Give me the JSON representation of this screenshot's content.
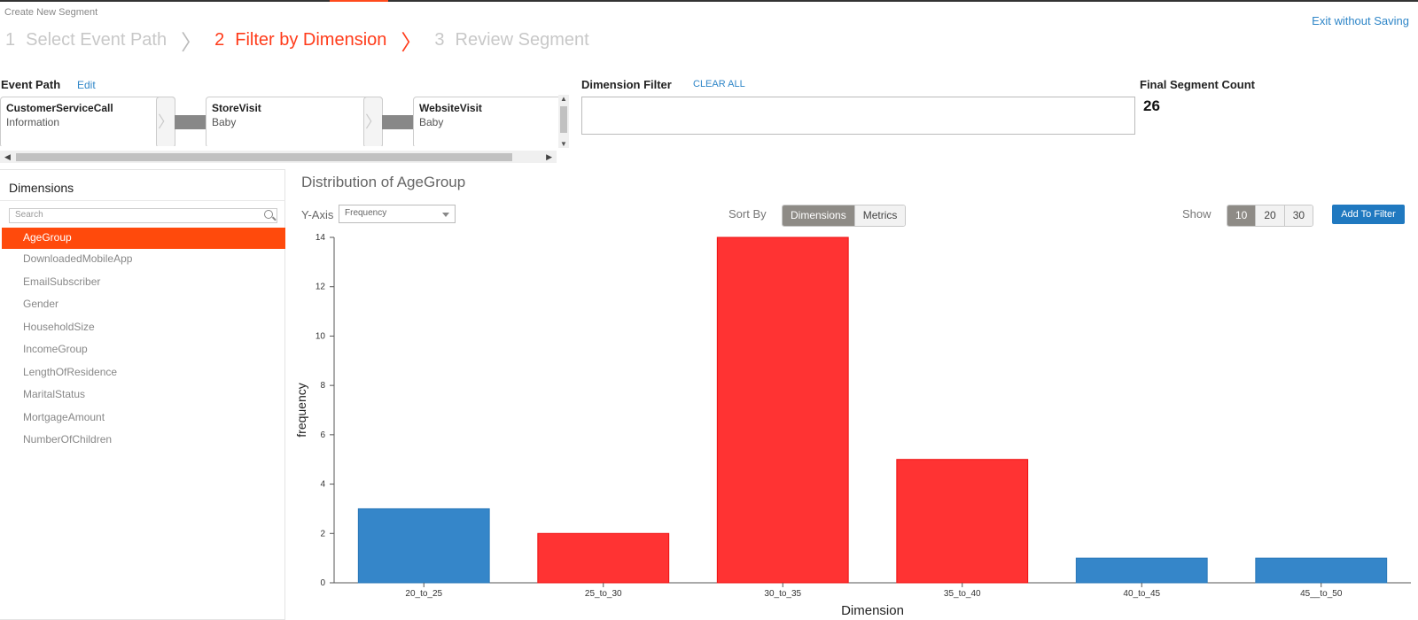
{
  "header": {
    "page_label": "Create New Segment",
    "steps": [
      {
        "num": "1",
        "label": "Select Event Path"
      },
      {
        "num": "2",
        "label": "Filter by Dimension"
      },
      {
        "num": "3",
        "label": "Review Segment"
      }
    ],
    "exit_label": "Exit without Saving"
  },
  "event_path": {
    "title": "Event Path",
    "edit_label": "Edit",
    "cards": [
      {
        "title": "CustomerServiceCall",
        "subtitle": "Information"
      },
      {
        "title": "StoreVisit",
        "subtitle": "Baby"
      },
      {
        "title": "WebsiteVisit",
        "subtitle": "Baby"
      }
    ]
  },
  "dimension_filter": {
    "title": "Dimension Filter",
    "clear_label": "CLEAR ALL",
    "value": ""
  },
  "final_segment": {
    "title": "Final Segment Count",
    "count": "26"
  },
  "dimensions": {
    "title": "Dimensions",
    "search_placeholder": "Search",
    "items": [
      "AgeGroup",
      "DownloadedMobileApp",
      "EmailSubscriber",
      "Gender",
      "HouseholdSize",
      "IncomeGroup",
      "LengthOfResidence",
      "MaritalStatus",
      "MortgageAmount",
      "NumberOfChildren"
    ],
    "selected": "AgeGroup"
  },
  "controls": {
    "chart_title": "Distribution of AgeGroup",
    "yaxis_label": "Y-Axis",
    "yaxis_value": "Frequency",
    "sort_label": "Sort By",
    "sort_options": [
      "Dimensions",
      "Metrics"
    ],
    "sort_selected": "Dimensions",
    "show_label": "Show",
    "show_options": [
      "10",
      "20",
      "30"
    ],
    "show_selected": "10",
    "add_to_filter_label": "Add To Filter"
  },
  "colors": {
    "accent": "#ff3b1a",
    "selected_bar": "#ff3333",
    "unselected_bar": "#3586c9",
    "button_blue": "#2079c0"
  },
  "chart_data": {
    "type": "bar",
    "categories": [
      "20_to_25",
      "25_to_30",
      "30_to_35",
      "35_to_40",
      "40_to_45",
      "45__to_50"
    ],
    "values": [
      3,
      2,
      14,
      5,
      1,
      1
    ],
    "selected": [
      false,
      true,
      true,
      true,
      false,
      false
    ],
    "ylabel": "frequency",
    "xlabel": "Dimension",
    "ylim": [
      0,
      14
    ],
    "yticks": [
      0,
      2,
      4,
      6,
      8,
      10,
      12,
      14
    ]
  }
}
